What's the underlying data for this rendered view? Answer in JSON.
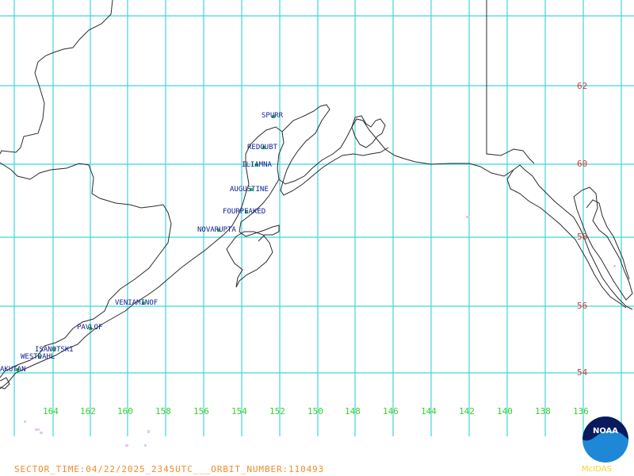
{
  "latitude_labels": [
    "62",
    "60",
    "58",
    "56",
    "54"
  ],
  "longitude_labels": [
    "164",
    "162",
    "160",
    "158",
    "156",
    "154",
    "152",
    "150",
    "148",
    "146",
    "144",
    "142",
    "140",
    "138",
    "136"
  ],
  "volcanoes": [
    {
      "id": "spurr",
      "name": "SPURR"
    },
    {
      "id": "redoubt",
      "name": "REDOUBT"
    },
    {
      "id": "iliamna",
      "name": "ILIAMNA"
    },
    {
      "id": "augustine",
      "name": "AUGUSTINE"
    },
    {
      "id": "fourpeaked",
      "name": "FOURPEAKED"
    },
    {
      "id": "novarupta",
      "name": "NOVARUPTA"
    },
    {
      "id": "veniaminof",
      "name": "VENIAMINOF"
    },
    {
      "id": "pavlof",
      "name": "PAVLOF"
    },
    {
      "id": "isanotski",
      "name": "ISANOTSKI"
    },
    {
      "id": "westdahl",
      "name": "WESTDAHL"
    },
    {
      "id": "akutan",
      "name": "AKUTAN"
    }
  ],
  "footer": {
    "text": "SECTOR_TIME:04/22/2025_2345UTC___ORBIT_NUMBER:110493"
  },
  "logo": {
    "name": "NOAA",
    "caption": "McIDAS"
  },
  "colors": {
    "grid": "#3fd6dc",
    "latitude_label": "#d23a3a",
    "longitude_label": "#39d12e",
    "volcano_label": "#10208f",
    "volcano_marker": "#22c455",
    "footer_text": "#f08a2a",
    "logo_caption": "#f4d32b",
    "coastline": "#2b2b2b"
  }
}
